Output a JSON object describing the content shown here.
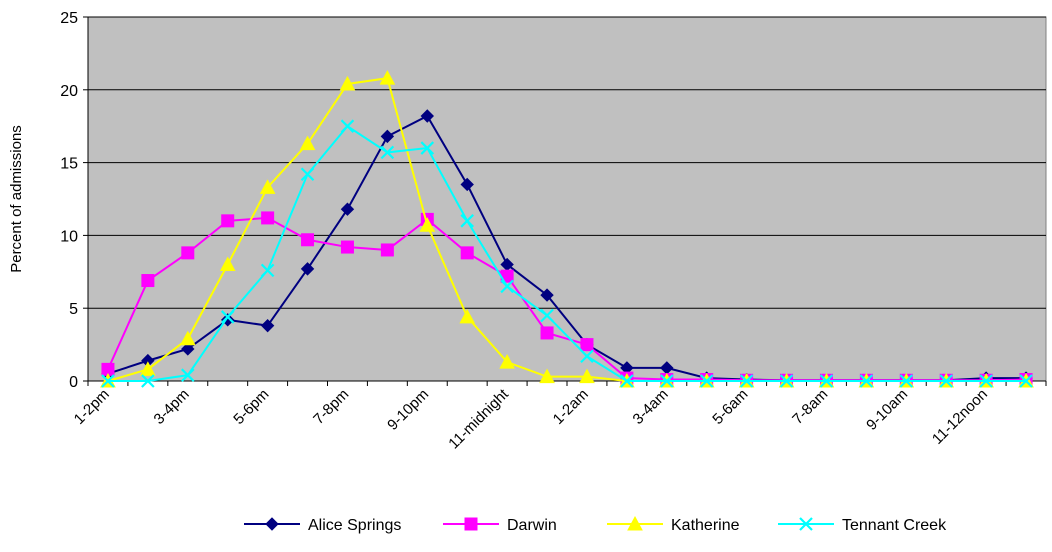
{
  "chart_data": {
    "type": "line",
    "title": "",
    "xlabel": "",
    "ylabel": "Percent of admissions",
    "ylim": [
      0,
      25
    ],
    "yticks": [
      0,
      5,
      10,
      15,
      20,
      25
    ],
    "grid": "horizontal",
    "legend_position": "bottom",
    "x_tick_labels": [
      "1-2pm",
      "3-4pm",
      "5-6pm",
      "7-8pm",
      "9-10pm",
      "11-midnight",
      "1-2am",
      "3-4am",
      "5-6am",
      "7-8am",
      "9-10am",
      "11-12noon"
    ],
    "x_points": 24,
    "series": [
      {
        "name": "Alice Springs",
        "color": "#000080",
        "marker": "diamond",
        "values": [
          0.5,
          1.4,
          2.2,
          4.2,
          3.8,
          7.7,
          11.8,
          16.8,
          18.2,
          13.5,
          8.0,
          5.9,
          2.5,
          0.9,
          0.9,
          0.2,
          0.1,
          0.05,
          0.05,
          0.05,
          0.05,
          0.05,
          0.2,
          0.2
        ]
      },
      {
        "name": "Darwin",
        "color": "#FF00FF",
        "marker": "square",
        "values": [
          0.8,
          6.9,
          8.8,
          11.0,
          11.2,
          9.7,
          9.2,
          9.0,
          11.1,
          8.8,
          7.2,
          3.3,
          2.5,
          0.2,
          0.1,
          0.1,
          0.05,
          0.05,
          0.05,
          0.05,
          0.05,
          0.05,
          0.05,
          0.1
        ]
      },
      {
        "name": "Katherine",
        "color": "#FFFF00",
        "marker": "triangle",
        "values": [
          0.0,
          0.8,
          2.9,
          8.0,
          13.3,
          16.3,
          20.4,
          20.8,
          10.7,
          4.4,
          1.3,
          0.3,
          0.3,
          0.0,
          0.0,
          0.0,
          0.0,
          0.0,
          0.0,
          0.0,
          0.0,
          0.0,
          0.0,
          0.0
        ]
      },
      {
        "name": "Tennant Creek",
        "color": "#00FFFF",
        "marker": "x",
        "values": [
          0.0,
          0.0,
          0.4,
          4.4,
          7.6,
          14.2,
          17.5,
          15.7,
          16.0,
          11.0,
          6.5,
          4.5,
          1.7,
          0.0,
          0.0,
          0.0,
          0.0,
          0.0,
          0.0,
          0.0,
          0.0,
          0.0,
          0.0,
          0.0
        ]
      }
    ]
  }
}
